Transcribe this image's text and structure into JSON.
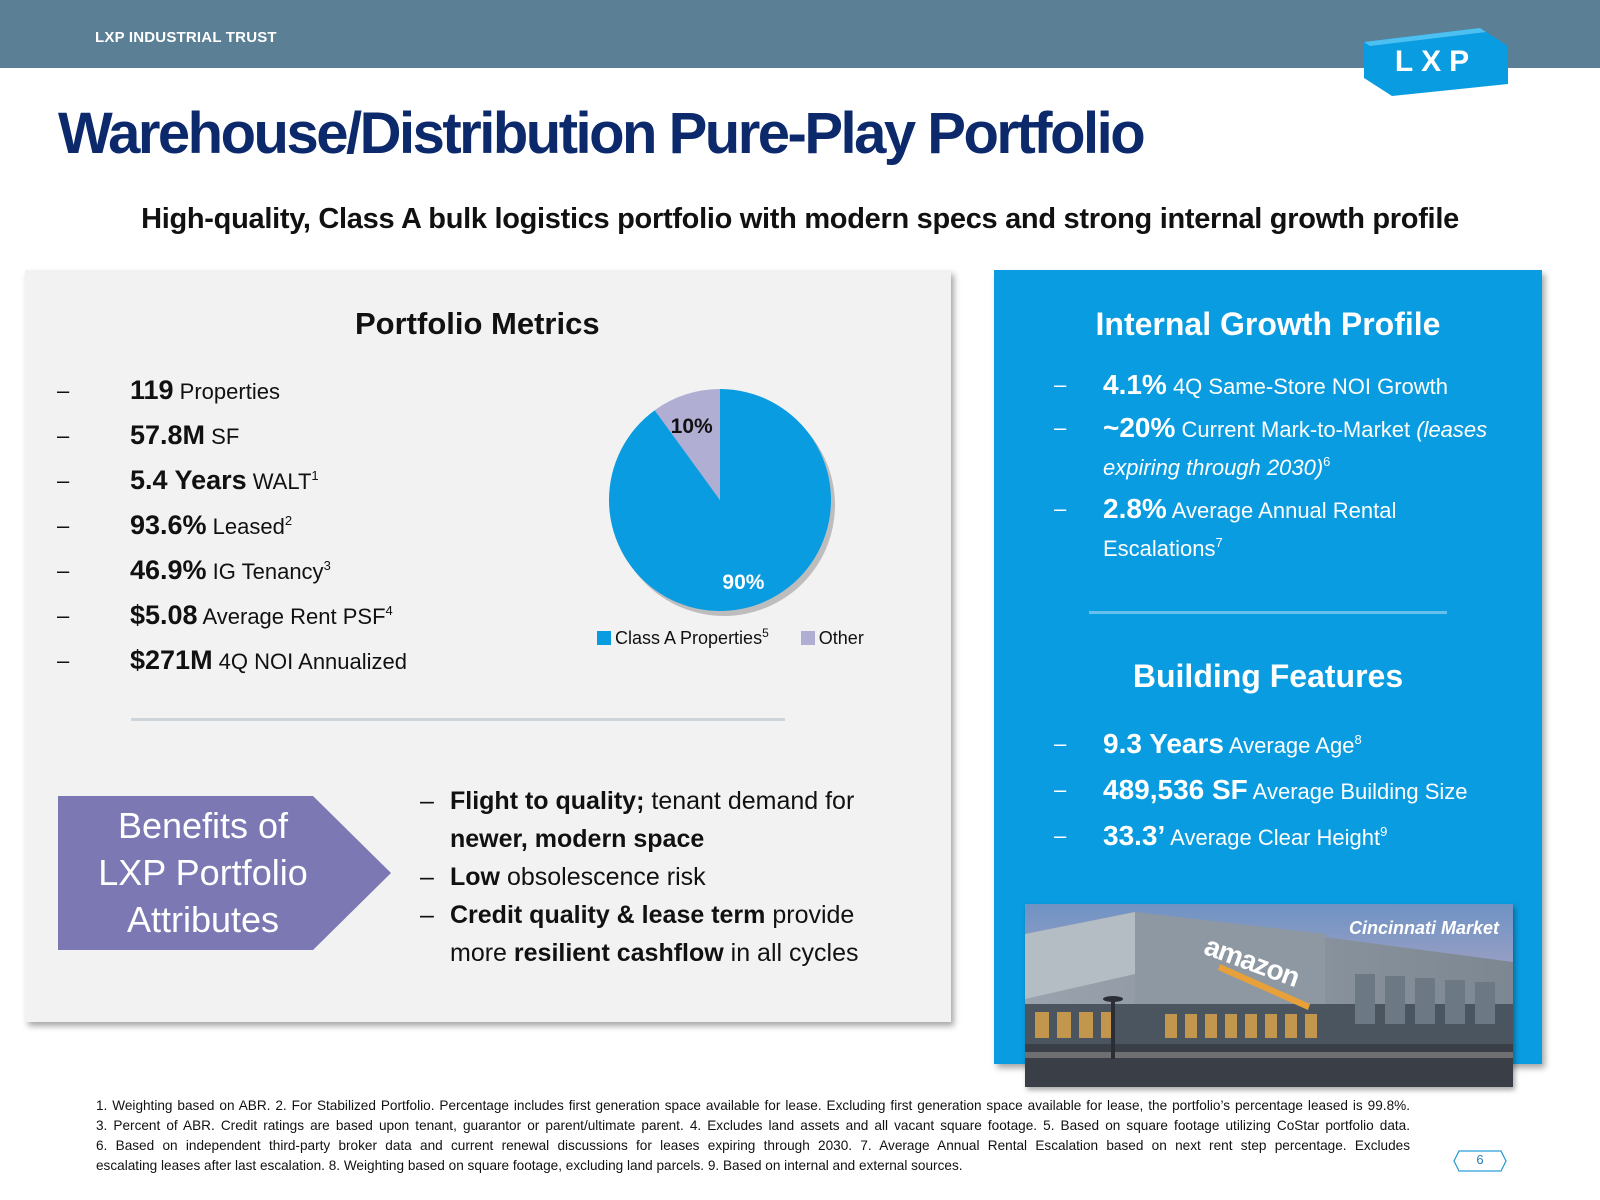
{
  "header": {
    "brand": "LXP INDUSTRIAL TRUST",
    "logo_text": "LXP",
    "bar_color": "#5b7f95",
    "logo_color": "#0a9ce0"
  },
  "title": "Warehouse/Distribution Pure-Play Portfolio",
  "subtitle": "High-quality, Class A bulk logistics portfolio with modern specs and strong internal growth profile",
  "portfolio_metrics": {
    "heading": "Portfolio Metrics",
    "items": [
      {
        "value": "119",
        "label": "Properties",
        "sup": ""
      },
      {
        "value": "57.8M",
        "label": "SF",
        "sup": ""
      },
      {
        "value": "5.4 Years",
        "label": "WALT",
        "sup": "1"
      },
      {
        "value": "93.6%",
        "label": "Leased",
        "sup": "2"
      },
      {
        "value": "46.9%",
        "label": "IG Tenancy",
        "sup": "3"
      },
      {
        "value": "$5.08",
        "label": "Average Rent PSF",
        "sup": "4"
      },
      {
        "value": "$271M",
        "label": "4Q NOI Annualized",
        "sup": ""
      }
    ]
  },
  "chart_data": {
    "type": "pie",
    "categories": [
      "Class A Properties",
      "Other"
    ],
    "values": [
      90,
      10
    ],
    "data_labels": [
      "90%",
      "10%"
    ],
    "legend": [
      "Class A Properties",
      "Other"
    ],
    "legend_sup": "5",
    "colors": [
      "#0a9ce0",
      "#b1aed4"
    ],
    "legend_placement": "bottom"
  },
  "benefits": {
    "label_lines": [
      "Benefits of",
      "LXP Portfolio",
      "Attributes"
    ],
    "color": "#7b78b4",
    "items": [
      {
        "lines": [
          [
            {
              "t": "Flight to quality;",
              "b": true
            },
            {
              "t": " tenant demand for",
              "b": false
            }
          ],
          [
            {
              "t": "newer, modern space",
              "b": true
            }
          ]
        ]
      },
      {
        "lines": [
          [
            {
              "t": "Low",
              "b": true
            },
            {
              "t": " obsolescence risk",
              "b": false
            }
          ]
        ]
      },
      {
        "lines": [
          [
            {
              "t": "Credit quality & lease term",
              "b": true
            },
            {
              "t": " provide",
              "b": false
            }
          ],
          [
            {
              "t": "more ",
              "b": false
            },
            {
              "t": "resilient cashflow",
              "b": true
            },
            {
              "t": " in all cycles",
              "b": false
            }
          ]
        ]
      }
    ]
  },
  "internal_growth": {
    "heading": "Internal Growth Profile",
    "items": [
      {
        "value": "4.1%",
        "label": "4Q Same-Store NOI Growth",
        "label_italic": "",
        "line2": "",
        "line2_italic": "",
        "sup": ""
      },
      {
        "value": "~20%",
        "label": "Current Mark-to-Market ",
        "label_italic": "(leases",
        "line2": "",
        "line2_italic": "expiring through 2030)",
        "sup": "6"
      },
      {
        "value": "2.8%",
        "label": "Average Annual Rental",
        "label_italic": "",
        "line2": "Escalations",
        "line2_italic": "",
        "sup": "7"
      }
    ]
  },
  "building_features": {
    "heading": "Building Features",
    "items": [
      {
        "value": "9.3 Years",
        "label": "Average Age",
        "sup": "8"
      },
      {
        "value": "489,536 SF",
        "label": "Average Building Size",
        "sup": ""
      },
      {
        "value": "33.3’",
        "label": "Average Clear Height",
        "sup": "9"
      }
    ]
  },
  "photo": {
    "caption": "Cincinnati Market",
    "sign": "amazon"
  },
  "footnotes": [
    "1. Weighting based on ABR. 2. For Stabilized Portfolio. Percentage includes first generation space available for lease. Excluding first generation space available for lease, the portfolio’s percentage leased is 99.8%.",
    "3. Percent of ABR. Credit ratings are based upon tenant, guarantor or parent/ultimate parent. 4. Excludes land assets and all vacant square footage. 5. Based on square footage utilizing CoStar portfolio data.",
    "6. Based on independent third-party broker data and current renewal discussions for leases expiring through 2030. 7. Average Annual Rental Escalation based on next rent step percentage. Excludes",
    "escalating leases after last escalation. 8. Weighting based on square footage, excluding land parcels. 9. Based on internal and external sources."
  ],
  "page_number": "6"
}
